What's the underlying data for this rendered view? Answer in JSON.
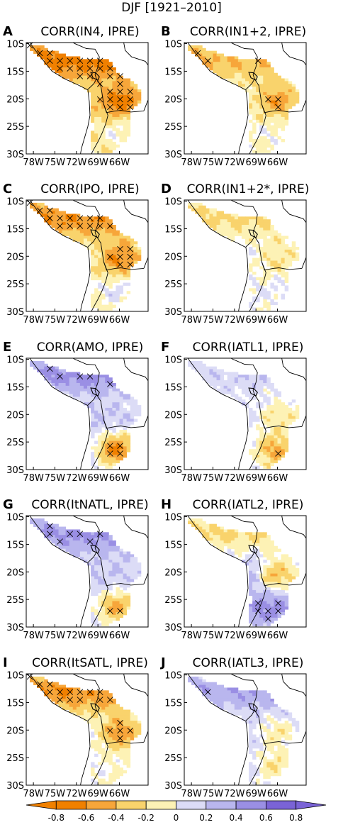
{
  "figure": {
    "title": "DJF [1921–2010]",
    "lat_ticks": [
      "10S",
      "15S",
      "20S",
      "25S",
      "30S"
    ],
    "lon_ticks": [
      "78W",
      "75W",
      "72W",
      "69W",
      "66W"
    ],
    "colors": {
      "neg_strong": "#f08000",
      "neg_mid": "#f7a63a",
      "neg_weak": "#f9d36c",
      "neg_faint": "#fdf2b5",
      "pos_faint": "#dcdcf6",
      "pos_weak": "#b9b6ee",
      "pos_mid": "#9a8fe4",
      "pos_strong": "#7a63d6"
    },
    "colorbar": {
      "labels": [
        "-0.8",
        "-0.6",
        "-0.4",
        "-0.2",
        "0",
        "0.2",
        "0.4",
        "0.6",
        "0.8"
      ]
    }
  },
  "chart_data": [
    {
      "type": "heatmap",
      "panel": "A",
      "title": "CORR(IN4, IPRE)",
      "pattern": "north-and-east negative; south slightly positive",
      "hatched": true
    },
    {
      "type": "heatmap",
      "panel": "B",
      "title": "CORR(IN1+2, IPRE)",
      "pattern": "mixed, eastern lowlands negative",
      "hatched": true
    },
    {
      "type": "heatmap",
      "panel": "C",
      "title": "CORR(IPO, IPRE)",
      "pattern": "north and east negative; south positive",
      "hatched": true
    },
    {
      "type": "heatmap",
      "panel": "D",
      "title": "CORR(IN1+2*, IPRE)",
      "pattern": "weak mixed",
      "hatched": true
    },
    {
      "type": "heatmap",
      "panel": "E",
      "title": "CORR(AMO, IPRE)",
      "pattern": "north positive; south strongly negative",
      "hatched": true
    },
    {
      "type": "heatmap",
      "panel": "F",
      "title": "CORR(IATL1, IPRE)",
      "pattern": "mixed; south negative",
      "hatched": true
    },
    {
      "type": "heatmap",
      "panel": "G",
      "title": "CORR(ItNATL, IPRE)",
      "pattern": "north positive; south negative",
      "hatched": true
    },
    {
      "type": "heatmap",
      "panel": "H",
      "title": "CORR(IATL2, IPRE)",
      "pattern": "east negative; south positive",
      "hatched": true
    },
    {
      "type": "heatmap",
      "panel": "I",
      "title": "CORR(ItSATL, IPRE)",
      "pattern": "north-west and east negative",
      "hatched": true
    },
    {
      "type": "heatmap",
      "panel": "J",
      "title": "CORR(IATL3, IPRE)",
      "pattern": "north positive; south-east negative",
      "hatched": true
    }
  ]
}
